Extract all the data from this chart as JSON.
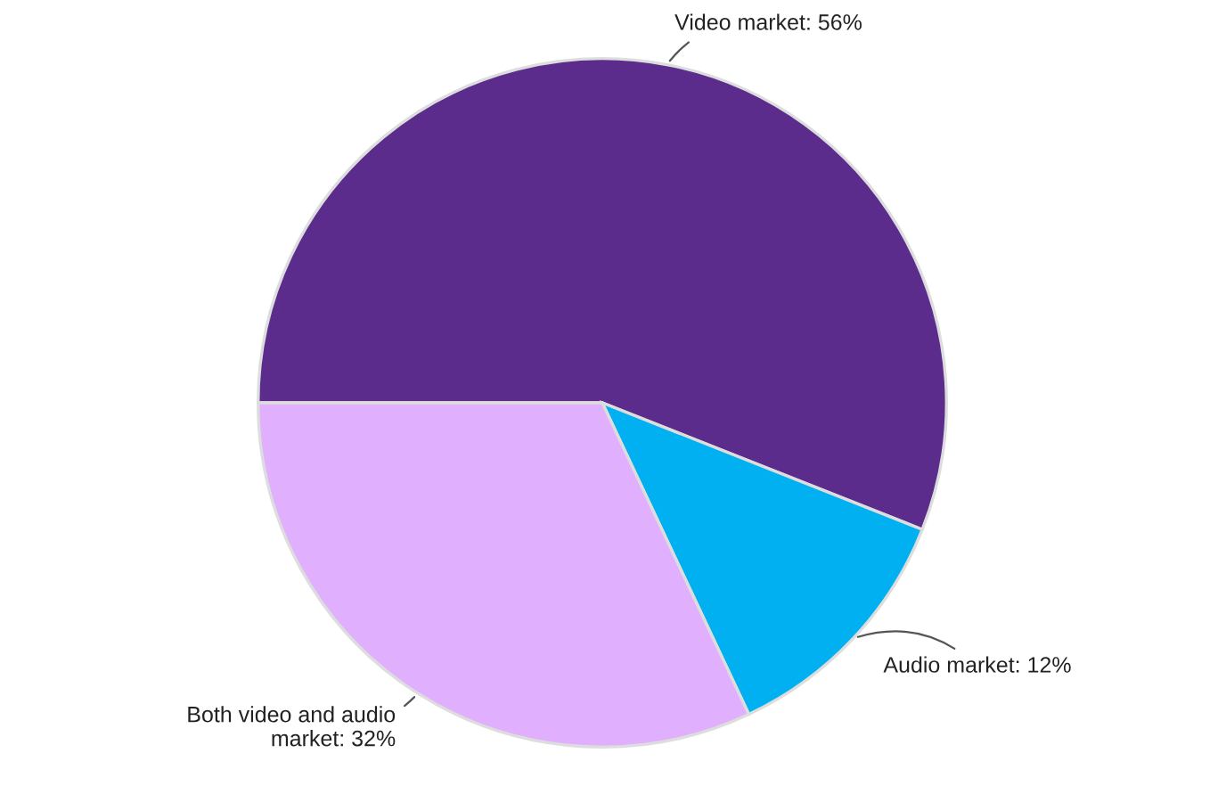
{
  "chart_data": {
    "type": "pie",
    "categories": [
      "Video market",
      "Audio market",
      "Both video and audio\nmarket"
    ],
    "values": [
      56,
      12,
      32
    ],
    "value_labels": [
      "56%",
      "12%",
      "32%"
    ],
    "colors": [
      "#5b2c8c",
      "#00b0f0",
      "#e0b0ff"
    ]
  }
}
